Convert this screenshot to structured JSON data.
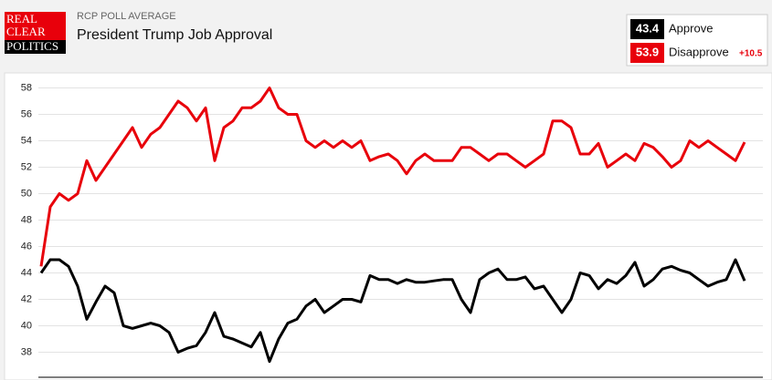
{
  "header": {
    "logo": [
      "REAL",
      "CLEAR",
      "POLITICS"
    ],
    "kicker": "RCP POLL AVERAGE"
  },
  "chart_data": {
    "type": "line",
    "title": "President Trump Job Approval",
    "spread_label": "+10.5",
    "ylim": [
      35.9,
      59
    ],
    "yticks": [
      38,
      40,
      42,
      44,
      46,
      48,
      50,
      52,
      54,
      56,
      58
    ],
    "grid": true,
    "series": [
      {
        "name": "Approve",
        "color": "#000000",
        "values": [
          44.0,
          45.0,
          45.0,
          44.5,
          43.0,
          40.5,
          41.8,
          43.0,
          42.5,
          40.0,
          39.8,
          40.0,
          40.2,
          40.0,
          39.5,
          38.0,
          38.3,
          38.5,
          39.5,
          41.0,
          39.2,
          39.0,
          38.7,
          38.4,
          39.5,
          37.3,
          39.0,
          40.2,
          40.5,
          41.5,
          42.0,
          41.0,
          41.5,
          42.0,
          42.0,
          41.8,
          43.8,
          43.5,
          43.5,
          43.2,
          43.5,
          43.3,
          43.3,
          43.4,
          43.5,
          43.5,
          42.0,
          41.0,
          43.5,
          44.0,
          44.3,
          43.5,
          43.5,
          43.7,
          42.8,
          43.0,
          42.0,
          41.0,
          42.0,
          44.0,
          43.8,
          42.8,
          43.5,
          43.2,
          43.8,
          44.8,
          43.0,
          43.5,
          44.3,
          44.5,
          44.2,
          44.0,
          43.5,
          43.0,
          43.3,
          43.5,
          45.0,
          43.4
        ]
      },
      {
        "name": "Disapprove",
        "color": "#e8000b",
        "values": [
          44.5,
          49.0,
          50.0,
          49.5,
          50.0,
          52.5,
          51.0,
          52.0,
          53.0,
          54.0,
          55.0,
          53.5,
          54.5,
          55.0,
          56.0,
          57.0,
          56.5,
          55.5,
          56.5,
          52.5,
          55.0,
          55.5,
          56.5,
          56.5,
          57.0,
          58.0,
          56.5,
          56.0,
          56.0,
          54.0,
          53.5,
          54.0,
          53.5,
          54.0,
          53.5,
          54.0,
          52.5,
          52.8,
          53.0,
          52.5,
          51.5,
          52.5,
          53.0,
          52.5,
          52.5,
          52.5,
          53.5,
          53.5,
          53.0,
          52.5,
          53.0,
          53.0,
          52.5,
          52.0,
          52.5,
          53.0,
          55.5,
          55.5,
          55.0,
          53.0,
          53.0,
          53.8,
          52.0,
          52.5,
          53.0,
          52.5,
          53.8,
          53.5,
          52.8,
          52.0,
          52.5,
          54.0,
          53.5,
          54.0,
          53.5,
          53.0,
          52.5,
          53.9
        ]
      }
    ]
  }
}
